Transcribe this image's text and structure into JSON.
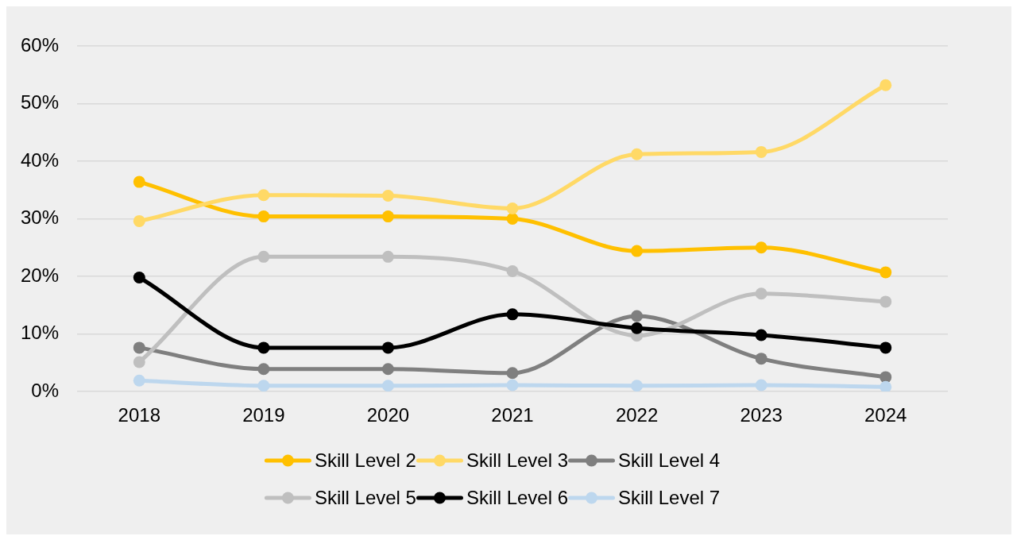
{
  "chart_data": {
    "type": "line",
    "categories": [
      "2018",
      "2019",
      "2020",
      "2021",
      "2022",
      "2023",
      "2024"
    ],
    "series": [
      {
        "name": "Skill Level 2",
        "color": "#ffc000",
        "values": [
          36.4,
          30.4,
          30.4,
          30.0,
          24.4,
          25.0,
          20.7
        ]
      },
      {
        "name": "Skill Level 3",
        "color": "#ffd966",
        "values": [
          29.6,
          34.1,
          34.0,
          31.8,
          41.2,
          41.6,
          53.2
        ]
      },
      {
        "name": "Skill Level 4",
        "color": "#7f7f7f",
        "values": [
          7.6,
          3.9,
          3.9,
          3.2,
          13.1,
          5.7,
          2.5
        ]
      },
      {
        "name": "Skill Level 5",
        "color": "#bfbfbf",
        "values": [
          5.1,
          23.4,
          23.4,
          20.9,
          9.7,
          17.0,
          15.6
        ]
      },
      {
        "name": "Skill Level 6",
        "color": "#000000",
        "values": [
          19.8,
          7.6,
          7.6,
          13.4,
          11.0,
          9.8,
          7.6
        ]
      },
      {
        "name": "Skill Level 7",
        "color": "#bdd7ee",
        "values": [
          1.9,
          1.0,
          1.0,
          1.1,
          1.0,
          1.1,
          0.8
        ]
      }
    ],
    "ylim": [
      0,
      60
    ],
    "yticks": [
      {
        "value": 0,
        "label": "0%"
      },
      {
        "value": 10,
        "label": "10%"
      },
      {
        "value": 20,
        "label": "20%"
      },
      {
        "value": 30,
        "label": "30%"
      },
      {
        "value": 40,
        "label": "40%"
      },
      {
        "value": 50,
        "label": "50%"
      },
      {
        "value": 60,
        "label": "60%"
      }
    ],
    "grid": "y",
    "legend": "bottom",
    "marker": "circle",
    "line_style": "solid"
  }
}
